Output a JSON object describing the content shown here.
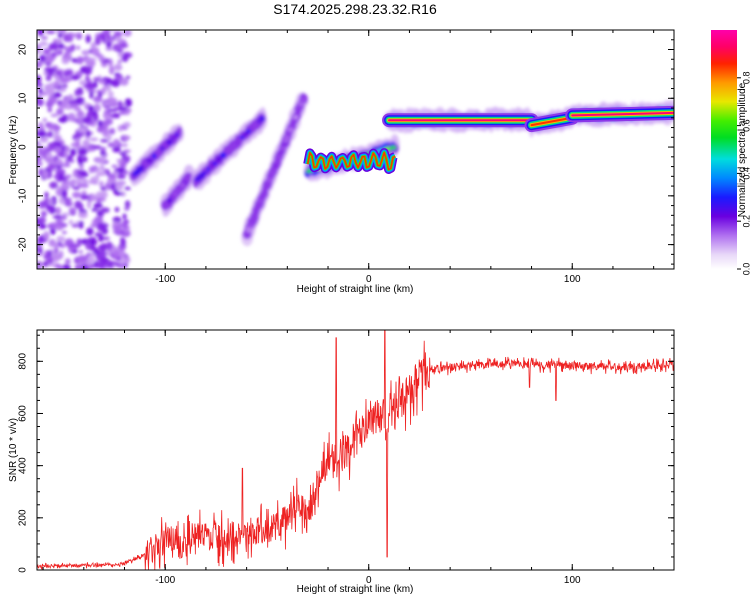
{
  "title": "S174.2025.298.23.32.R16",
  "chart_data": [
    {
      "type": "heatmap",
      "xlabel": "Height of straight line (km)",
      "ylabel": "Frequency (Hz)",
      "xlim": [
        -163,
        150
      ],
      "ylim": [
        -25,
        24
      ],
      "xticks": [
        "-100",
        "0",
        "100"
      ],
      "yticks": [
        "20",
        "10",
        "0",
        "-10",
        "-20"
      ],
      "colorbar_label": "Normalized spectral amplitude",
      "colorbar_range": [
        0,
        1
      ],
      "colorbar_ticks": [
        "0.0",
        "0.2",
        "0.4",
        "0.6",
        "0.8"
      ],
      "segments": [
        {
          "name": "noise",
          "x": [
            -163,
            -118
          ],
          "freq": [
            -25,
            24
          ],
          "amplitude": 0.1
        },
        {
          "name": "ramp-1",
          "x": [
            -116,
            -93
          ],
          "freq": [
            -6,
            3
          ],
          "amplitude": 0.3
        },
        {
          "name": "ramp-1b",
          "x": [
            -100,
            -88
          ],
          "freq": [
            -12,
            -6
          ],
          "amplitude": 0.25
        },
        {
          "name": "ramp-2",
          "x": [
            -85,
            -52
          ],
          "freq": [
            -7,
            6
          ],
          "amplitude": 0.3
        },
        {
          "name": "ramp-3",
          "x": [
            -60,
            -32
          ],
          "freq": [
            -18,
            10
          ],
          "amplitude": 0.2
        },
        {
          "name": "band-low",
          "x": [
            -30,
            13
          ],
          "freq": [
            -5,
            0
          ],
          "amplitude": 0.7
        },
        {
          "name": "band-a",
          "x": [
            10,
            80
          ],
          "freq": [
            5.5,
            5.5
          ],
          "amplitude": 0.95
        },
        {
          "name": "band-b",
          "x": [
            80,
            100
          ],
          "freq": [
            4.5,
            6
          ],
          "amplitude": 0.85
        },
        {
          "name": "band-c",
          "x": [
            100,
            150
          ],
          "freq": [
            6.5,
            7
          ],
          "amplitude": 0.95
        }
      ]
    },
    {
      "type": "line",
      "xlabel": "Height of straight line (km)",
      "ylabel": "SNR (10 * v/v)",
      "xlim": [
        -163,
        150
      ],
      "ylim": [
        0,
        920
      ],
      "xticks": [
        "-100",
        "0",
        "100"
      ],
      "yticks": [
        "0",
        "200",
        "400",
        "600",
        "800"
      ],
      "color": "#ee2222",
      "series": [
        {
          "name": "SNR",
          "x": [
            -163,
            -140,
            -120,
            -110,
            -100,
            -90,
            -80,
            -70,
            -60,
            -50,
            -40,
            -35,
            -30,
            -25,
            -20,
            -15,
            -10,
            -5,
            0,
            5,
            10,
            15,
            20,
            25,
            30,
            40,
            60,
            80,
            100,
            120,
            140,
            150
          ],
          "values": [
            15,
            18,
            25,
            60,
            120,
            130,
            140,
            130,
            150,
            160,
            200,
            260,
            230,
            350,
            420,
            430,
            480,
            520,
            560,
            590,
            600,
            640,
            700,
            750,
            770,
            780,
            790,
            790,
            785,
            780,
            785,
            790
          ]
        }
      ],
      "spikes": [
        {
          "x": -16,
          "value": 890
        },
        {
          "x": 8,
          "value": 920
        },
        {
          "x": 9,
          "value": 50
        },
        {
          "x": -62,
          "value": 390
        },
        {
          "x": 92,
          "value": 650
        },
        {
          "x": 79,
          "value": 700
        }
      ]
    }
  ]
}
